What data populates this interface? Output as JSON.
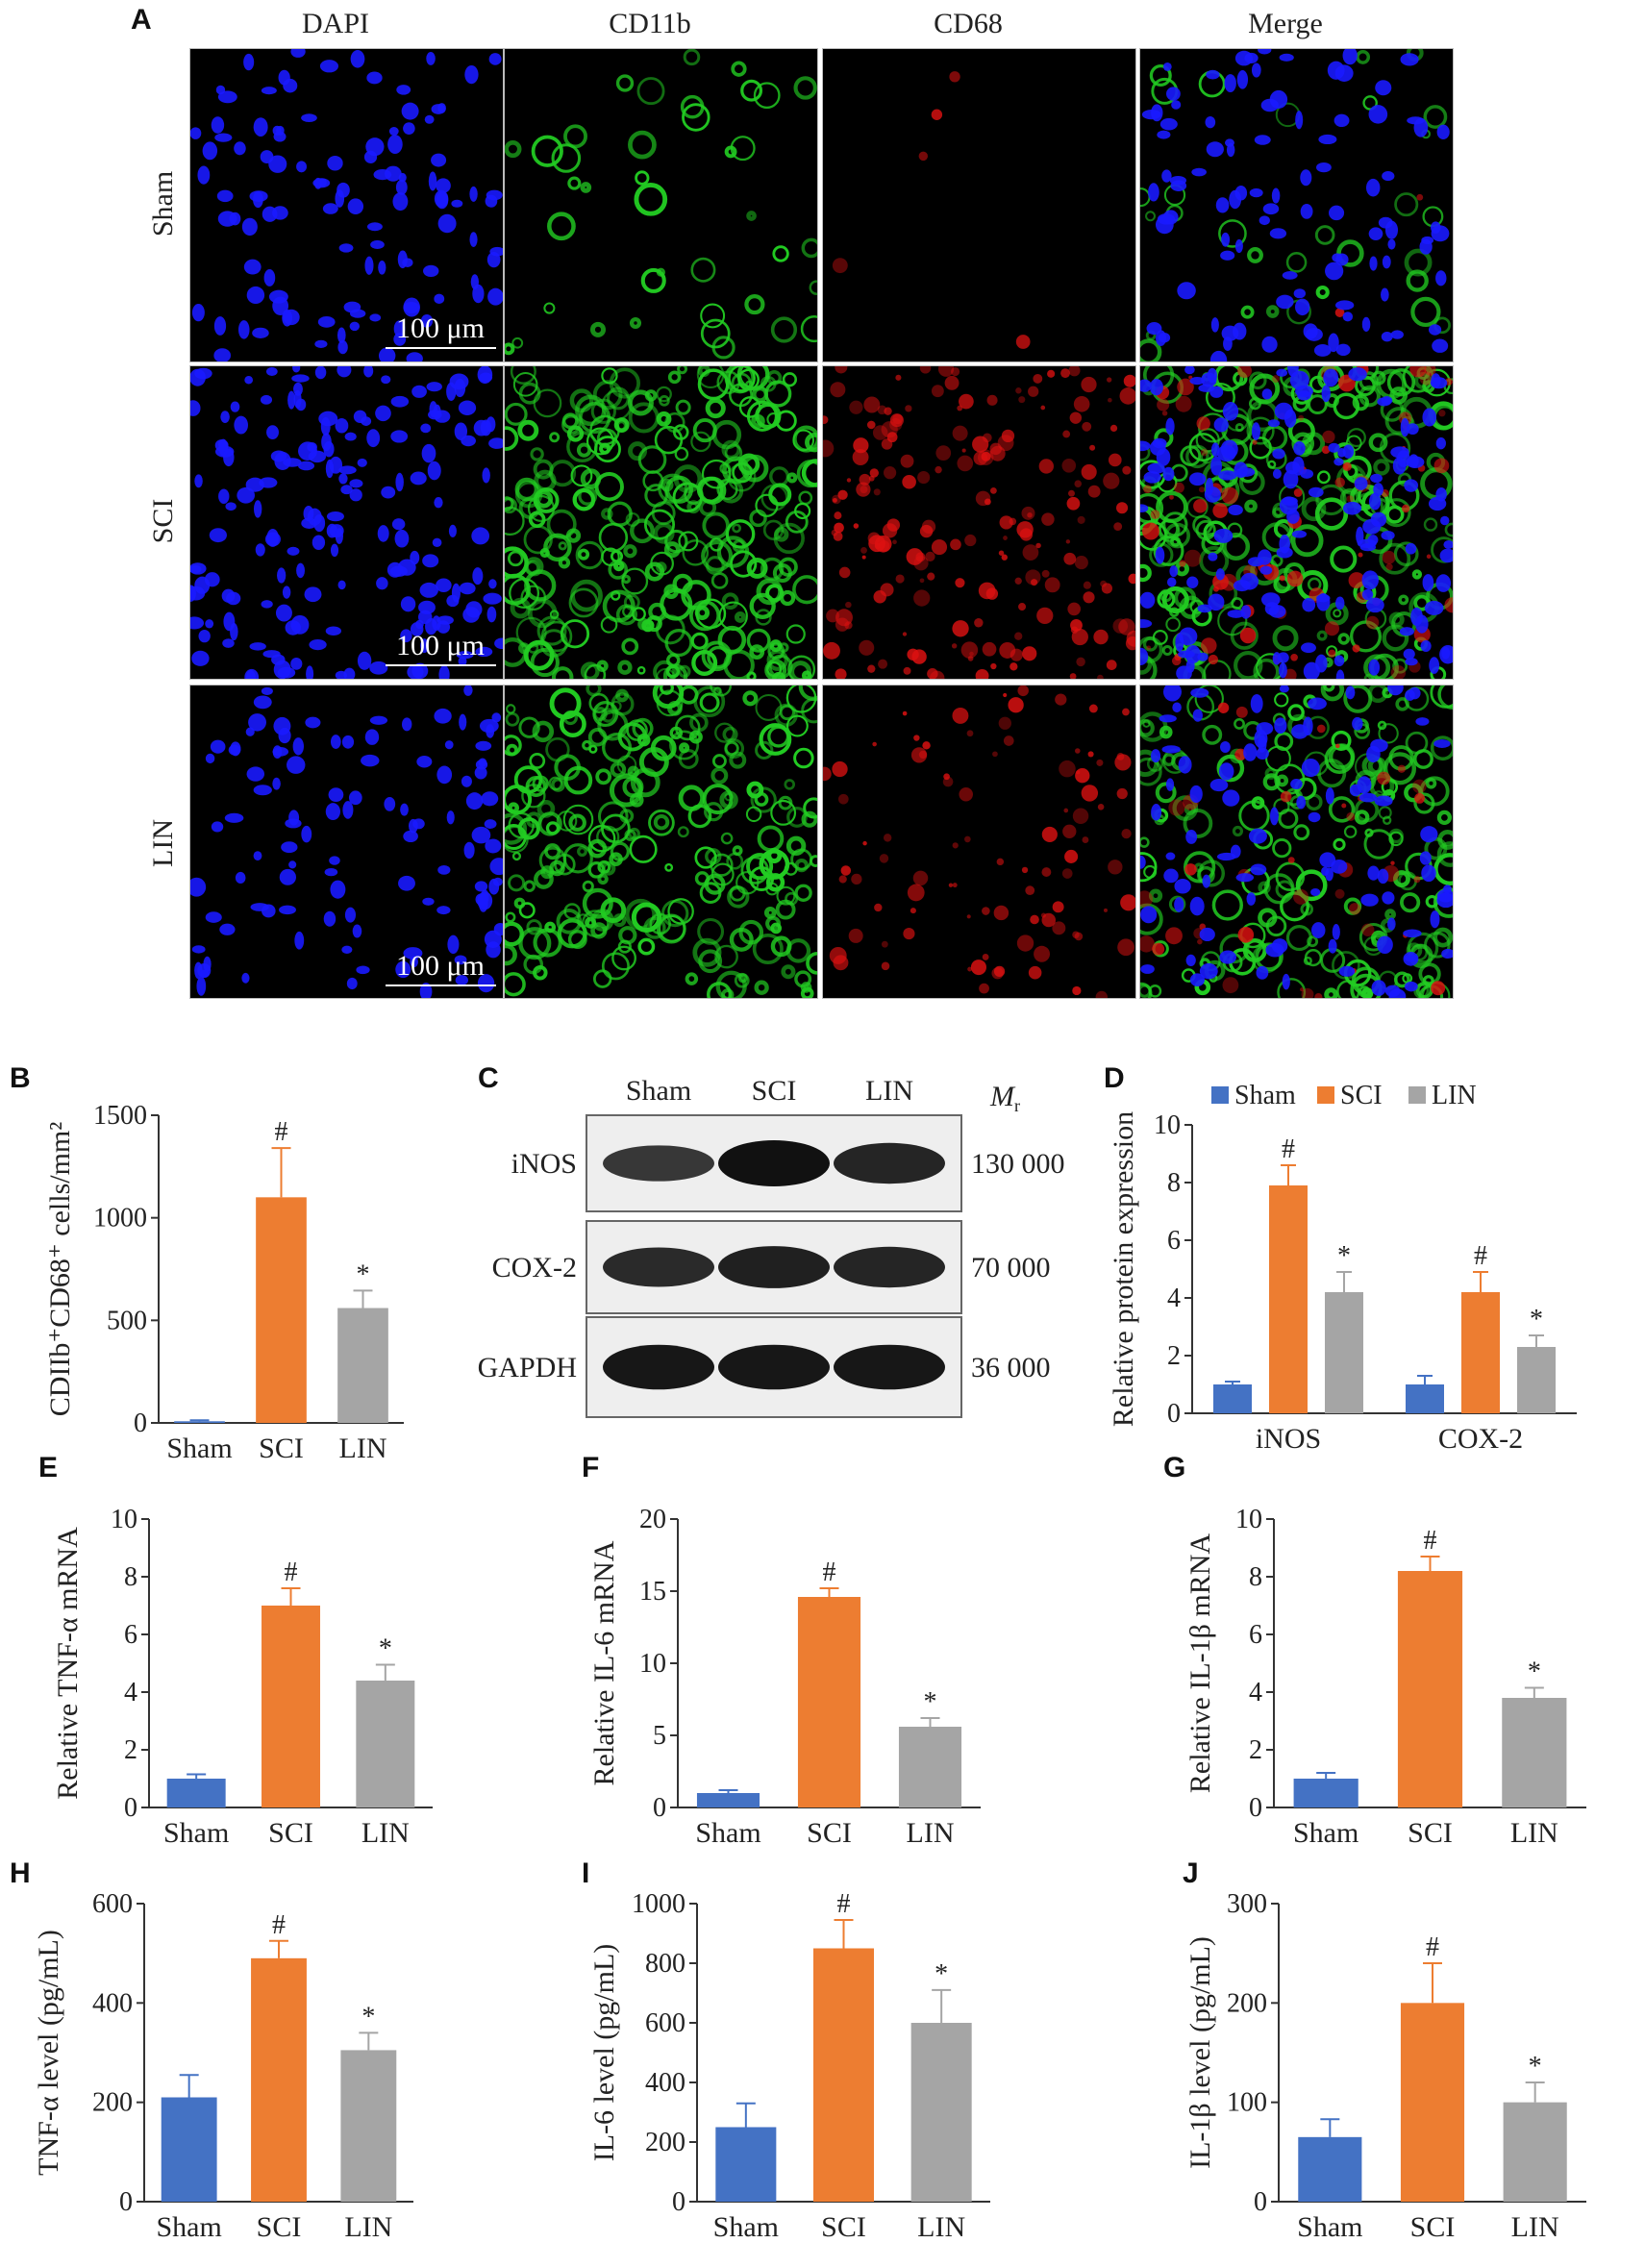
{
  "colors": {
    "sham": "#4472C4",
    "sci": "#ED7D31",
    "lin": "#A5A5A5",
    "dapi": "#1a1aff",
    "cd11b": "#22cc22",
    "cd68": "#dd1111"
  },
  "panels": {
    "a": "A",
    "b": "B",
    "c": "C",
    "d": "D",
    "e": "E",
    "f": "F",
    "g": "G",
    "h": "H",
    "i": "I",
    "j": "J"
  },
  "figure_a": {
    "columns": [
      "DAPI",
      "CD11b",
      "CD68",
      "Merge"
    ],
    "rows": [
      "Sham",
      "SCI",
      "LIN"
    ],
    "scale_bar": "100 μm"
  },
  "blot": {
    "lanes": [
      "Sham",
      "SCI",
      "LIN"
    ],
    "mr_label": "M",
    "mr_sub": "r",
    "rows": [
      {
        "protein": "iNOS",
        "mr": "130 000",
        "intensity": [
          0.62,
          1.0,
          0.8
        ]
      },
      {
        "protein": "COX-2",
        "mr": "70 000",
        "intensity": [
          0.75,
          0.85,
          0.8
        ]
      },
      {
        "protein": "GAPDH",
        "mr": "36 000",
        "intensity": [
          0.95,
          0.95,
          0.95
        ]
      }
    ]
  },
  "chart_data": [
    {
      "panel": "B",
      "type": "bar",
      "categories": [
        "Sham",
        "SCI",
        "LIN"
      ],
      "values": [
        8,
        1100,
        560
      ],
      "errors": [
        5,
        240,
        85
      ],
      "marks": [
        "",
        "#",
        "*"
      ],
      "ylabel_html": "CDIIb⁺CD68⁺ cells/mm²",
      "ylim": [
        0,
        1500
      ],
      "ticks": [
        0,
        500,
        1000,
        1500
      ]
    },
    {
      "panel": "D",
      "type": "bar",
      "categories": [
        "iNOS",
        "COX-2"
      ],
      "series": [
        {
          "name": "Sham",
          "values": [
            1.0,
            1.0
          ],
          "errors": [
            0.1,
            0.3
          ],
          "marks": [
            "",
            ""
          ]
        },
        {
          "name": "SCI",
          "values": [
            7.9,
            4.2
          ],
          "errors": [
            0.7,
            0.7
          ],
          "marks": [
            "#",
            "#"
          ]
        },
        {
          "name": "LIN",
          "values": [
            4.2,
            2.3
          ],
          "errors": [
            0.7,
            0.4
          ],
          "marks": [
            "*",
            "*"
          ]
        }
      ],
      "ylabel_html": "Relative protein expression",
      "ylim": [
        0,
        10
      ],
      "ticks": [
        0,
        2,
        4,
        6,
        8,
        10
      ],
      "legend": "top"
    },
    {
      "panel": "E",
      "type": "bar",
      "categories": [
        "Sham",
        "SCI",
        "LIN"
      ],
      "values": [
        1.0,
        7.0,
        4.4
      ],
      "errors": [
        0.15,
        0.6,
        0.55
      ],
      "marks": [
        "",
        "#",
        "*"
      ],
      "ylabel_html": "Relative TNF-α mRNA",
      "ylim": [
        0,
        10
      ],
      "ticks": [
        0,
        2,
        4,
        6,
        8,
        10
      ]
    },
    {
      "panel": "F",
      "type": "bar",
      "categories": [
        "Sham",
        "SCI",
        "LIN"
      ],
      "values": [
        1.0,
        14.6,
        5.6
      ],
      "errors": [
        0.2,
        0.6,
        0.6
      ],
      "marks": [
        "",
        "#",
        "*"
      ],
      "ylabel_html": "Relative IL-6 mRNA",
      "ylim": [
        0,
        20
      ],
      "ticks": [
        0,
        5,
        10,
        15,
        20
      ]
    },
    {
      "panel": "G",
      "type": "bar",
      "categories": [
        "Sham",
        "SCI",
        "LIN"
      ],
      "values": [
        1.0,
        8.2,
        3.8
      ],
      "errors": [
        0.2,
        0.5,
        0.35
      ],
      "marks": [
        "",
        "#",
        "*"
      ],
      "ylabel_html": "Relative IL-1β mRNA",
      "ylim": [
        0,
        10
      ],
      "ticks": [
        0,
        2,
        4,
        6,
        8,
        10
      ]
    },
    {
      "panel": "H",
      "type": "bar",
      "categories": [
        "Sham",
        "SCI",
        "LIN"
      ],
      "values": [
        210,
        490,
        305
      ],
      "errors": [
        45,
        35,
        35
      ],
      "marks": [
        "",
        "#",
        "*"
      ],
      "ylabel_html": "TNF-α  level (pg/mL)",
      "ylim": [
        0,
        600
      ],
      "ticks": [
        0,
        200,
        400,
        600
      ]
    },
    {
      "panel": "I",
      "type": "bar",
      "categories": [
        "Sham",
        "SCI",
        "LIN"
      ],
      "values": [
        250,
        850,
        600
      ],
      "errors": [
        80,
        95,
        110
      ],
      "marks": [
        "",
        "#",
        "*"
      ],
      "ylabel_html": "IL-6 level (pg/mL)",
      "ylim": [
        0,
        1000
      ],
      "ticks": [
        0,
        200,
        400,
        600,
        800,
        1000
      ]
    },
    {
      "panel": "J",
      "type": "bar",
      "categories": [
        "Sham",
        "SCI",
        "LIN"
      ],
      "values": [
        65,
        200,
        100
      ],
      "errors": [
        18,
        40,
        20
      ],
      "marks": [
        "",
        "#",
        "*"
      ],
      "ylabel_html": "IL-1β level (pg/mL)",
      "ylim": [
        0,
        300
      ],
      "ticks": [
        0,
        100,
        200,
        300
      ]
    }
  ]
}
